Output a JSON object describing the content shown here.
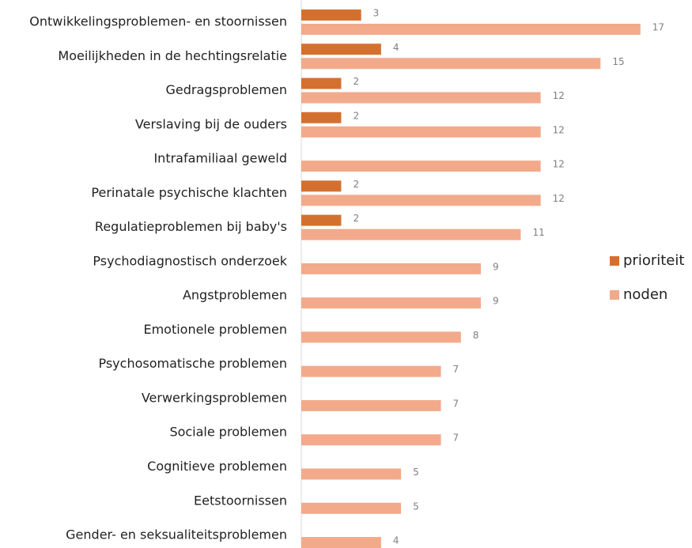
{
  "chart_data": {
    "type": "bar",
    "orientation": "horizontal",
    "categories": [
      "Ontwikkelingsproblemen- en stoornissen",
      "Moeilijkheden in de hechtingsrelatie",
      "Gedragsproblemen",
      "Verslaving bij de ouders",
      "Intrafamiliaal geweld",
      "Perinatale psychische klachten",
      "Regulatieproblemen bij baby's",
      "Psychodiagnostisch onderzoek",
      "Angstproblemen",
      "Emotionele problemen",
      "Psychosomatische problemen",
      "Verwerkingsproblemen",
      "Sociale problemen",
      "Cognitieve problemen",
      "Eetstoornissen",
      "Gender- en seksualiteitsproblemen"
    ],
    "series": [
      {
        "name": "prioriteit",
        "color": "#d4702f",
        "values": [
          3,
          4,
          2,
          2,
          null,
          2,
          2,
          null,
          null,
          null,
          null,
          null,
          null,
          null,
          null,
          null
        ]
      },
      {
        "name": "noden",
        "color": "#f2aa8b",
        "values": [
          17,
          15,
          12,
          12,
          12,
          12,
          11,
          9,
          9,
          8,
          7,
          7,
          7,
          5,
          5,
          4
        ]
      }
    ],
    "xlim": [
      0,
      18
    ],
    "legend": "right"
  }
}
